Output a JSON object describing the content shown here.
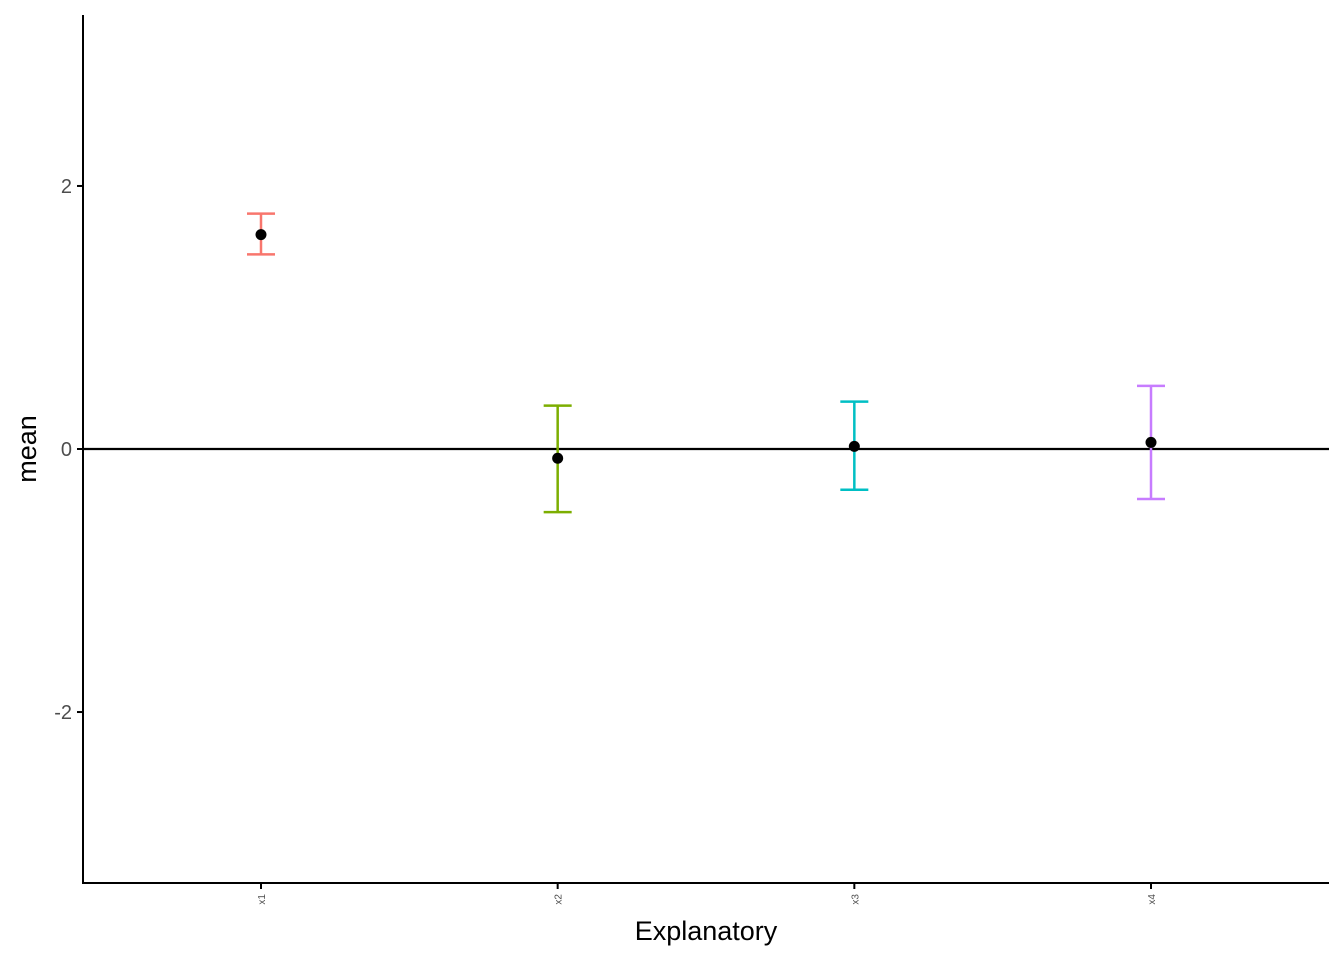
{
  "chart_data": {
    "type": "errorbar",
    "title": "",
    "xlabel": "Explanatory",
    "ylabel": "mean",
    "categories": [
      "x1",
      "x2",
      "x3",
      "x4"
    ],
    "means": [
      1.63,
      -0.07,
      0.02,
      0.05
    ],
    "lower": [
      1.48,
      -0.48,
      -0.31,
      -0.38
    ],
    "upper": [
      1.79,
      0.33,
      0.36,
      0.48
    ],
    "colors": [
      "#F8766D",
      "#7CAE00",
      "#00BFC4",
      "#C77CFF"
    ],
    "point_color": "#000000",
    "ylim": [
      -3.3,
      3.3
    ],
    "yticks": [
      -2,
      0,
      2
    ],
    "ytick_labels": [
      "-2",
      "0",
      "2"
    ],
    "reference_line_y": 0,
    "grid": false,
    "legend": "none"
  }
}
